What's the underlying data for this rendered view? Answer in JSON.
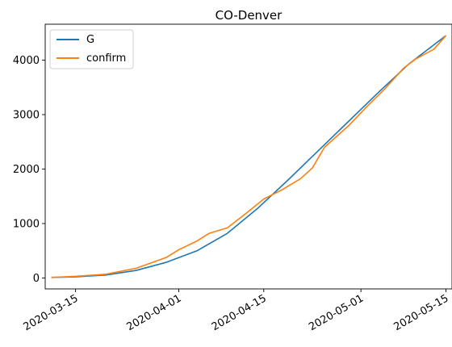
{
  "chart_data": {
    "type": "line",
    "title": "CO-Denver",
    "xlabel": "",
    "ylabel": "",
    "x_start": "2020-03-11",
    "x_end": "2020-05-15",
    "xlim": [
      "2020-03-10",
      "2020-05-16"
    ],
    "ylim": [
      -200,
      4660
    ],
    "xticks": [
      "2020-03-15",
      "2020-04-01",
      "2020-04-15",
      "2020-05-01",
      "2020-05-15"
    ],
    "yticks": [
      0,
      1000,
      2000,
      3000,
      4000
    ],
    "legend": {
      "position": "top-left"
    },
    "grid": false,
    "series": [
      {
        "name": "G",
        "color": "#1f77b4",
        "points": [
          [
            "2020-03-11",
            10
          ],
          [
            "2020-03-15",
            22
          ],
          [
            "2020-03-20",
            55
          ],
          [
            "2020-03-25",
            140
          ],
          [
            "2020-03-30",
            290
          ],
          [
            "2020-04-04",
            500
          ],
          [
            "2020-04-09",
            820
          ],
          [
            "2020-04-14",
            1280
          ],
          [
            "2020-04-19",
            1800
          ],
          [
            "2020-04-24",
            2340
          ],
          [
            "2020-04-29",
            2880
          ],
          [
            "2020-05-04",
            3420
          ],
          [
            "2020-05-09",
            3940
          ],
          [
            "2020-05-15",
            4450
          ]
        ]
      },
      {
        "name": "confirm",
        "color": "#ff7f0e",
        "points": [
          [
            "2020-03-11",
            10
          ],
          [
            "2020-03-15",
            30
          ],
          [
            "2020-03-20",
            70
          ],
          [
            "2020-03-25",
            180
          ],
          [
            "2020-03-30",
            380
          ],
          [
            "2020-04-01",
            520
          ],
          [
            "2020-04-04",
            680
          ],
          [
            "2020-04-06",
            820
          ],
          [
            "2020-04-09",
            920
          ],
          [
            "2020-04-12",
            1180
          ],
          [
            "2020-04-15",
            1450
          ],
          [
            "2020-04-18",
            1620
          ],
          [
            "2020-04-21",
            1820
          ],
          [
            "2020-04-23",
            2020
          ],
          [
            "2020-04-25",
            2400
          ],
          [
            "2020-04-29",
            2800
          ],
          [
            "2020-05-02",
            3150
          ],
          [
            "2020-05-05",
            3480
          ],
          [
            "2020-05-08",
            3850
          ],
          [
            "2020-05-10",
            4020
          ],
          [
            "2020-05-13",
            4200
          ],
          [
            "2020-05-15",
            4450
          ]
        ]
      }
    ]
  }
}
